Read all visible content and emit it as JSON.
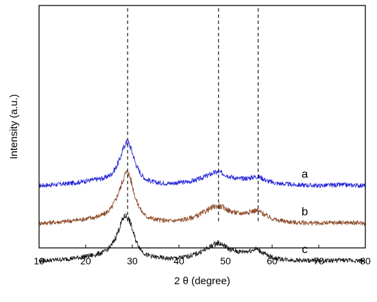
{
  "chart_data": {
    "type": "line",
    "xlabel": "2 θ (degree)",
    "ylabel": "Intensity (a.u.)",
    "xlim": [
      10,
      80
    ],
    "xticks": [
      10,
      20,
      30,
      40,
      50,
      60,
      70,
      80
    ],
    "y_ticks_shown": false,
    "grid": false,
    "reference_lines_x": [
      29,
      48.5,
      57
    ],
    "reference_line_style": "dashed",
    "series": [
      {
        "name": "a",
        "color": "#2323d8",
        "baseline": 0.9,
        "points": [
          [
            10,
            0.0
          ],
          [
            15,
            0.02
          ],
          [
            18,
            0.04
          ],
          [
            20,
            0.06
          ],
          [
            22,
            0.08
          ],
          [
            24,
            0.1
          ],
          [
            25.5,
            0.15
          ],
          [
            26.5,
            0.24
          ],
          [
            27.5,
            0.38
          ],
          [
            28,
            0.48
          ],
          [
            28.5,
            0.56
          ],
          [
            29,
            0.58
          ],
          [
            29.5,
            0.53
          ],
          [
            30,
            0.44
          ],
          [
            30.5,
            0.34
          ],
          [
            31,
            0.25
          ],
          [
            32,
            0.14
          ],
          [
            33,
            0.08
          ],
          [
            35,
            0.04
          ],
          [
            38,
            0.03
          ],
          [
            40,
            0.04
          ],
          [
            42,
            0.05
          ],
          [
            44,
            0.08
          ],
          [
            46,
            0.13
          ],
          [
            47.5,
            0.17
          ],
          [
            48.5,
            0.18
          ],
          [
            49.5,
            0.16
          ],
          [
            51,
            0.12
          ],
          [
            53,
            0.09
          ],
          [
            55,
            0.1
          ],
          [
            56.5,
            0.12
          ],
          [
            57.5,
            0.11
          ],
          [
            59,
            0.06
          ],
          [
            61,
            0.03
          ],
          [
            65,
            0.01
          ],
          [
            70,
            0.0
          ],
          [
            75,
            0.01
          ],
          [
            80,
            0.0
          ]
        ]
      },
      {
        "name": "b",
        "color": "#8c4a26",
        "baseline": 0.4,
        "points": [
          [
            10,
            0.0
          ],
          [
            15,
            0.02
          ],
          [
            18,
            0.04
          ],
          [
            20,
            0.06
          ],
          [
            22,
            0.08
          ],
          [
            24,
            0.12
          ],
          [
            25.5,
            0.2
          ],
          [
            26.5,
            0.32
          ],
          [
            27.5,
            0.48
          ],
          [
            28,
            0.58
          ],
          [
            28.5,
            0.66
          ],
          [
            29,
            0.68
          ],
          [
            29.5,
            0.62
          ],
          [
            30,
            0.5
          ],
          [
            30.5,
            0.38
          ],
          [
            31,
            0.28
          ],
          [
            32,
            0.16
          ],
          [
            33,
            0.09
          ],
          [
            35,
            0.05
          ],
          [
            38,
            0.03
          ],
          [
            40,
            0.04
          ],
          [
            42,
            0.06
          ],
          [
            44,
            0.1
          ],
          [
            46,
            0.17
          ],
          [
            47.5,
            0.22
          ],
          [
            48.5,
            0.23
          ],
          [
            49.5,
            0.21
          ],
          [
            51,
            0.16
          ],
          [
            53,
            0.13
          ],
          [
            55,
            0.15
          ],
          [
            56.5,
            0.17
          ],
          [
            57.5,
            0.15
          ],
          [
            59,
            0.09
          ],
          [
            61,
            0.04
          ],
          [
            65,
            0.01
          ],
          [
            70,
            0.0
          ],
          [
            75,
            0.01
          ],
          [
            80,
            0.0
          ]
        ]
      },
      {
        "name": "c",
        "color": "#1a1a1a",
        "baseline": -0.1,
        "points": [
          [
            10,
            0.0
          ],
          [
            15,
            0.02
          ],
          [
            18,
            0.04
          ],
          [
            20,
            0.06
          ],
          [
            22,
            0.08
          ],
          [
            24,
            0.12
          ],
          [
            25.5,
            0.2
          ],
          [
            26.5,
            0.32
          ],
          [
            27.5,
            0.48
          ],
          [
            28,
            0.56
          ],
          [
            28.5,
            0.6
          ],
          [
            29,
            0.58
          ],
          [
            29.5,
            0.52
          ],
          [
            30,
            0.42
          ],
          [
            30.5,
            0.32
          ],
          [
            31,
            0.24
          ],
          [
            32,
            0.14
          ],
          [
            33,
            0.08
          ],
          [
            35,
            0.05
          ],
          [
            38,
            0.03
          ],
          [
            40,
            0.04
          ],
          [
            42,
            0.06
          ],
          [
            44,
            0.1
          ],
          [
            46,
            0.16
          ],
          [
            47.5,
            0.22
          ],
          [
            48.5,
            0.24
          ],
          [
            49.5,
            0.21
          ],
          [
            51,
            0.15
          ],
          [
            53,
            0.12
          ],
          [
            55,
            0.13
          ],
          [
            56.5,
            0.16
          ],
          [
            57.5,
            0.13
          ],
          [
            59,
            0.07
          ],
          [
            61,
            0.03
          ],
          [
            65,
            0.01
          ],
          [
            70,
            0.0
          ],
          [
            75,
            0.01
          ],
          [
            80,
            0.0
          ]
        ]
      }
    ]
  }
}
